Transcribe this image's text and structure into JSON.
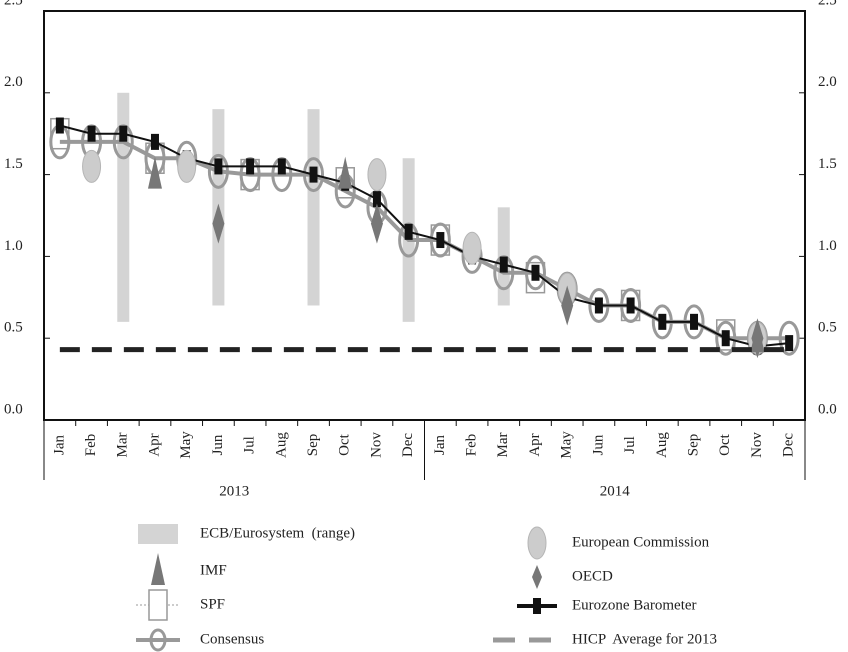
{
  "chart_data": {
    "type": "forecast-combo",
    "categories": [
      "Jan",
      "Feb",
      "Mar",
      "Apr",
      "May",
      "Jun",
      "Jul",
      "Aug",
      "Sep",
      "Oct",
      "Nov",
      "Dec",
      "Jan",
      "Feb",
      "Mar",
      "Apr",
      "May",
      "Jun",
      "Jul",
      "Aug",
      "Sep",
      "Oct",
      "Nov",
      "Dec"
    ],
    "x_groups": [
      "2013",
      "2014"
    ],
    "ylim": [
      0,
      2.5
    ],
    "yticks": [
      {
        "value": 0,
        "label": "0.0"
      },
      {
        "value": 0.5,
        "label": "0.5"
      },
      {
        "value": 1,
        "label": "1.0"
      },
      {
        "value": 1.5,
        "label": "1.5"
      },
      {
        "value": 2,
        "label": "2.0"
      },
      {
        "value": 2.5,
        "label": "2.5"
      }
    ],
    "series": [
      {
        "name": "ECB/Eurosystem  (range)",
        "style": "range",
        "color": "#d4d4d4",
        "low": [
          null,
          null,
          0.6,
          null,
          null,
          0.7,
          null,
          null,
          0.7,
          null,
          null,
          0.6,
          null,
          null,
          0.7,
          null,
          null,
          null,
          null,
          null,
          null,
          null,
          null,
          null
        ],
        "high": [
          null,
          null,
          2.0,
          null,
          null,
          1.9,
          null,
          null,
          1.9,
          null,
          null,
          1.6,
          null,
          null,
          1.3,
          null,
          null,
          null,
          null,
          null,
          null,
          null,
          null,
          null
        ]
      },
      {
        "name": "IMF",
        "style": "triangle",
        "color": "#777777",
        "values": [
          null,
          null,
          null,
          1.5,
          null,
          null,
          null,
          null,
          null,
          1.5,
          null,
          null,
          null,
          null,
          null,
          null,
          null,
          null,
          null,
          null,
          null,
          null,
          0.5,
          null
        ]
      },
      {
        "name": "SPF",
        "style": "box",
        "color": "#999999",
        "values": [
          1.75,
          null,
          null,
          1.6,
          null,
          null,
          1.5,
          null,
          null,
          1.45,
          null,
          null,
          1.1,
          null,
          null,
          0.87,
          null,
          null,
          0.7,
          null,
          null,
          0.52,
          null,
          null
        ]
      },
      {
        "name": "Consensus",
        "style": "line-ellipse",
        "color": "#999999",
        "values": [
          1.7,
          1.7,
          1.7,
          1.6,
          1.6,
          1.52,
          1.5,
          1.5,
          1.5,
          1.4,
          1.3,
          1.1,
          1.1,
          1.0,
          0.9,
          0.9,
          0.8,
          0.7,
          0.7,
          0.6,
          0.6,
          0.5,
          0.5,
          0.5
        ]
      },
      {
        "name": "European Commission",
        "style": "ellipse",
        "color": "#cccccc",
        "values": [
          null,
          1.55,
          null,
          null,
          1.55,
          null,
          null,
          null,
          null,
          null,
          1.5,
          null,
          null,
          1.05,
          null,
          null,
          0.8,
          null,
          null,
          null,
          null,
          null,
          0.5,
          null
        ]
      },
      {
        "name": "OECD",
        "style": "diamond",
        "color": "#777777",
        "values": [
          null,
          null,
          null,
          null,
          null,
          1.2,
          null,
          null,
          null,
          null,
          1.2,
          null,
          null,
          null,
          null,
          null,
          0.7,
          null,
          null,
          null,
          null,
          null,
          0.5,
          null
        ]
      },
      {
        "name": "Eurozone Barometer",
        "style": "line-box",
        "color": "#111111",
        "values": [
          1.8,
          1.75,
          1.75,
          1.7,
          1.6,
          1.55,
          1.55,
          1.55,
          1.5,
          1.45,
          1.35,
          1.15,
          1.1,
          1.0,
          0.95,
          0.9,
          0.75,
          0.7,
          0.7,
          0.6,
          0.6,
          0.5,
          0.45,
          0.47
        ]
      },
      {
        "name": "HICP  Average for 2013",
        "style": "dashed",
        "color": "#222222",
        "value": 0.43
      }
    ]
  }
}
